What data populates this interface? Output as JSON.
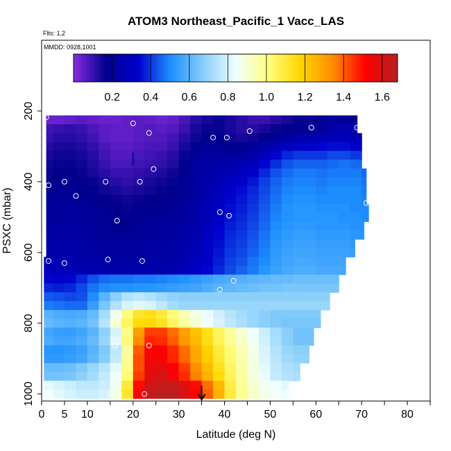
{
  "chart_data": {
    "type": "heatmap",
    "title": "ATOM3 Northeast_Pacific_1 Vacc_LAS",
    "flights_label": "Flts: 1,2",
    "date_label": "MMDD: 0928,1001",
    "xlabel": "Latitude (deg N)",
    "ylabel": "PSXC (mbar)",
    "xlim": [
      0,
      85
    ],
    "ylim": [
      1020,
      0
    ],
    "x_ticks": [
      0,
      5,
      10,
      20,
      30,
      40,
      50,
      60,
      70,
      80
    ],
    "y_ticks": [
      200,
      400,
      600,
      800,
      1000
    ],
    "colorbar": {
      "range": [
        0,
        1.68
      ],
      "ticks": [
        "0.2",
        "0.4",
        "0.6",
        "0.8",
        "1.0",
        "1.2",
        "1.4",
        "1.6"
      ],
      "tick_values": [
        0.2,
        0.4,
        0.6,
        0.8,
        1.0,
        1.2,
        1.4,
        1.6
      ],
      "colors": [
        "#8a2be2",
        "#00008b",
        "#0000cd",
        "#1e90ff",
        "#87cefa",
        "#f0ffff",
        "#ffff80",
        "#ffd700",
        "#ff8c00",
        "#ff0000",
        "#b22222"
      ]
    },
    "pressure_levels": [
      225,
      250,
      275,
      300,
      325,
      350,
      375,
      400,
      425,
      450,
      475,
      500,
      525,
      550,
      575,
      600,
      625,
      650,
      675,
      700,
      725,
      750,
      775,
      800,
      825,
      850,
      875,
      900,
      925,
      950,
      975,
      1000
    ],
    "row_extent_lat": [
      [
        1,
        69
      ],
      [
        1,
        69
      ],
      [
        1,
        70
      ],
      [
        1,
        70
      ],
      [
        1,
        70
      ],
      [
        1,
        70
      ],
      [
        1,
        71
      ],
      [
        1,
        71
      ],
      [
        1,
        71
      ],
      [
        1,
        71
      ],
      [
        1,
        71.5
      ],
      [
        1,
        71.5
      ],
      [
        1,
        70.5
      ],
      [
        1,
        70.5
      ],
      [
        1,
        68.5
      ],
      [
        1,
        68.5
      ],
      [
        0.5,
        66.5
      ],
      [
        0.5,
        66.5
      ],
      [
        0.5,
        65
      ],
      [
        0.5,
        65
      ],
      [
        0.5,
        63
      ],
      [
        0.5,
        63
      ],
      [
        0.5,
        61
      ],
      [
        0.5,
        61
      ],
      [
        0.5,
        59.5
      ],
      [
        0.5,
        59.5
      ],
      [
        0.5,
        58.5
      ],
      [
        0.5,
        58.5
      ],
      [
        0.5,
        56.5
      ],
      [
        0.5,
        56.5
      ],
      [
        0.5,
        54
      ],
      [
        0.5,
        54
      ]
    ],
    "grid_lat": [
      0,
      2.5,
      5,
      7.5,
      10,
      12.5,
      15,
      17.5,
      20,
      22.5,
      25,
      27.5,
      30,
      32.5,
      35,
      37.5,
      40,
      42.5,
      45,
      47.5,
      50,
      52.5,
      55,
      57.5,
      60,
      62.5,
      65,
      67.5,
      70,
      72.5
    ],
    "values": [
      [
        0.04,
        0.04,
        0.05,
        0.06,
        0.05,
        0.04,
        0.04,
        0.05,
        0.06,
        0.05,
        0.04,
        0.05,
        0.08,
        0.12,
        0.14,
        0.16,
        0.14,
        0.12,
        0.1,
        0.1,
        0.12,
        0.14,
        0.16,
        0.16,
        0.18,
        0.22,
        0.2,
        0.18,
        0.18,
        0.18
      ],
      [
        0.09,
        0.1,
        0.11,
        0.1,
        0.08,
        0.06,
        0.05,
        0.05,
        0.06,
        0.07,
        0.06,
        0.07,
        0.1,
        0.14,
        0.16,
        0.16,
        0.14,
        0.12,
        0.12,
        0.14,
        0.16,
        0.17,
        0.18,
        0.19,
        0.2,
        0.24,
        0.26,
        0.26,
        0.24,
        0.24
      ],
      [
        0.1,
        0.12,
        0.12,
        0.11,
        0.09,
        0.06,
        0.05,
        0.05,
        0.06,
        0.07,
        0.07,
        0.09,
        0.12,
        0.15,
        0.17,
        0.17,
        0.15,
        0.14,
        0.15,
        0.17,
        0.2,
        0.22,
        0.24,
        0.26,
        0.27,
        0.28,
        0.28,
        0.26,
        0.24,
        0.24
      ],
      [
        0.12,
        0.14,
        0.14,
        0.13,
        0.11,
        0.08,
        0.06,
        0.06,
        0.07,
        0.08,
        0.08,
        0.1,
        0.14,
        0.18,
        0.2,
        0.19,
        0.18,
        0.18,
        0.2,
        0.24,
        0.27,
        0.3,
        0.32,
        0.33,
        0.34,
        0.35,
        0.35,
        0.33,
        0.3,
        0.3
      ],
      [
        0.14,
        0.15,
        0.15,
        0.14,
        0.12,
        0.09,
        0.07,
        0.07,
        0.08,
        0.09,
        0.1,
        0.12,
        0.16,
        0.2,
        0.22,
        0.22,
        0.22,
        0.22,
        0.25,
        0.3,
        0.34,
        0.38,
        0.4,
        0.4,
        0.4,
        0.42,
        0.42,
        0.4,
        0.38,
        0.38
      ],
      [
        0.15,
        0.16,
        0.16,
        0.15,
        0.13,
        0.1,
        0.08,
        0.08,
        0.09,
        0.1,
        0.11,
        0.13,
        0.17,
        0.21,
        0.23,
        0.24,
        0.25,
        0.26,
        0.29,
        0.34,
        0.39,
        0.43,
        0.45,
        0.45,
        0.45,
        0.46,
        0.47,
        0.46,
        0.44,
        0.44
      ],
      [
        0.16,
        0.17,
        0.17,
        0.16,
        0.14,
        0.12,
        0.1,
        0.1,
        0.11,
        0.12,
        0.13,
        0.15,
        0.18,
        0.22,
        0.24,
        0.26,
        0.28,
        0.3,
        0.33,
        0.38,
        0.43,
        0.46,
        0.48,
        0.48,
        0.47,
        0.48,
        0.48,
        0.48,
        0.46,
        0.46
      ],
      [
        0.17,
        0.18,
        0.18,
        0.17,
        0.16,
        0.14,
        0.12,
        0.11,
        0.12,
        0.14,
        0.15,
        0.16,
        0.19,
        0.22,
        0.25,
        0.28,
        0.31,
        0.33,
        0.36,
        0.41,
        0.45,
        0.48,
        0.49,
        0.49,
        0.48,
        0.49,
        0.49,
        0.49,
        0.47,
        0.47
      ],
      [
        0.18,
        0.19,
        0.19,
        0.18,
        0.17,
        0.15,
        0.14,
        0.13,
        0.14,
        0.15,
        0.16,
        0.17,
        0.19,
        0.22,
        0.26,
        0.29,
        0.33,
        0.35,
        0.38,
        0.42,
        0.46,
        0.49,
        0.5,
        0.5,
        0.49,
        0.5,
        0.5,
        0.5,
        0.48,
        0.48
      ],
      [
        0.19,
        0.2,
        0.2,
        0.19,
        0.18,
        0.17,
        0.16,
        0.15,
        0.16,
        0.17,
        0.17,
        0.18,
        0.2,
        0.23,
        0.27,
        0.3,
        0.34,
        0.36,
        0.39,
        0.43,
        0.47,
        0.5,
        0.51,
        0.51,
        0.5,
        0.5,
        0.5,
        0.5,
        0.49,
        0.49
      ],
      [
        0.2,
        0.21,
        0.21,
        0.2,
        0.19,
        0.18,
        0.17,
        0.16,
        0.17,
        0.18,
        0.18,
        0.19,
        0.21,
        0.24,
        0.27,
        0.31,
        0.35,
        0.37,
        0.4,
        0.44,
        0.48,
        0.51,
        0.52,
        0.52,
        0.51,
        0.51,
        0.51,
        0.5,
        0.5,
        0.5
      ],
      [
        0.2,
        0.21,
        0.22,
        0.21,
        0.2,
        0.19,
        0.18,
        0.17,
        0.18,
        0.19,
        0.19,
        0.2,
        0.22,
        0.24,
        0.28,
        0.32,
        0.36,
        0.38,
        0.41,
        0.45,
        0.49,
        0.51,
        0.52,
        0.52,
        0.52,
        0.52,
        0.51,
        0.51,
        0.5,
        0.5
      ],
      [
        0.21,
        0.22,
        0.22,
        0.21,
        0.2,
        0.19,
        0.18,
        0.18,
        0.19,
        0.2,
        0.2,
        0.21,
        0.23,
        0.25,
        0.29,
        0.33,
        0.37,
        0.39,
        0.42,
        0.46,
        0.5,
        0.52,
        0.53,
        0.53,
        0.52,
        0.52,
        0.52,
        0.51,
        0.51,
        0.51
      ],
      [
        0.22,
        0.23,
        0.23,
        0.22,
        0.21,
        0.2,
        0.19,
        0.19,
        0.2,
        0.21,
        0.21,
        0.22,
        0.24,
        0.26,
        0.3,
        0.34,
        0.38,
        0.4,
        0.43,
        0.47,
        0.51,
        0.53,
        0.54,
        0.54,
        0.53,
        0.53,
        0.53,
        0.52,
        0.52,
        0.52
      ],
      [
        0.23,
        0.24,
        0.24,
        0.23,
        0.22,
        0.21,
        0.21,
        0.2,
        0.21,
        0.22,
        0.22,
        0.23,
        0.25,
        0.27,
        0.31,
        0.35,
        0.39,
        0.41,
        0.44,
        0.48,
        0.52,
        0.54,
        0.55,
        0.55,
        0.54,
        0.54,
        0.54,
        0.53,
        0.53,
        0.53
      ],
      [
        0.24,
        0.25,
        0.25,
        0.24,
        0.23,
        0.22,
        0.22,
        0.21,
        0.22,
        0.23,
        0.23,
        0.24,
        0.26,
        0.28,
        0.32,
        0.36,
        0.4,
        0.42,
        0.45,
        0.49,
        0.53,
        0.55,
        0.56,
        0.56,
        0.55,
        0.55,
        0.55,
        0.54,
        0.54,
        0.54
      ],
      [
        0.28,
        0.27,
        0.26,
        0.25,
        0.25,
        0.24,
        0.24,
        0.23,
        0.24,
        0.24,
        0.24,
        0.25,
        0.27,
        0.3,
        0.33,
        0.37,
        0.41,
        0.43,
        0.47,
        0.5,
        0.54,
        0.56,
        0.57,
        0.57,
        0.56,
        0.56,
        0.56,
        0.55,
        0.55,
        0.55
      ],
      [
        0.3,
        0.29,
        0.28,
        0.27,
        0.26,
        0.25,
        0.25,
        0.24,
        0.25,
        0.25,
        0.25,
        0.26,
        0.28,
        0.31,
        0.34,
        0.38,
        0.42,
        0.45,
        0.48,
        0.52,
        0.55,
        0.57,
        0.58,
        0.58,
        0.57,
        0.57,
        0.57,
        0.56,
        0.56,
        0.56
      ],
      [
        0.34,
        0.33,
        0.34,
        0.38,
        0.43,
        0.46,
        0.47,
        0.47,
        0.48,
        0.48,
        0.49,
        0.5,
        0.51,
        0.53,
        0.55,
        0.57,
        0.58,
        0.59,
        0.6,
        0.61,
        0.62,
        0.62,
        0.63,
        0.63,
        0.63,
        0.63,
        0.63,
        0.62,
        0.62,
        0.62
      ],
      [
        0.38,
        0.37,
        0.38,
        0.42,
        0.47,
        0.5,
        0.51,
        0.51,
        0.52,
        0.52,
        0.53,
        0.54,
        0.55,
        0.56,
        0.58,
        0.6,
        0.61,
        0.62,
        0.63,
        0.64,
        0.64,
        0.65,
        0.65,
        0.65,
        0.65,
        0.65,
        0.65,
        0.64,
        0.64,
        0.64
      ],
      [
        0.44,
        0.43,
        0.42,
        0.43,
        0.5,
        0.6,
        0.68,
        0.74,
        0.76,
        0.74,
        0.71,
        0.69,
        0.68,
        0.68,
        0.68,
        0.68,
        0.68,
        0.68,
        0.68,
        0.68,
        0.68,
        0.68,
        0.68,
        0.68,
        0.68,
        0.68,
        0.68,
        0.68,
        0.68,
        0.68
      ],
      [
        0.48,
        0.47,
        0.46,
        0.46,
        0.54,
        0.65,
        0.74,
        0.8,
        0.82,
        0.8,
        0.76,
        0.72,
        0.7,
        0.7,
        0.7,
        0.7,
        0.7,
        0.7,
        0.7,
        0.7,
        0.7,
        0.7,
        0.7,
        0.7,
        0.7,
        0.7,
        0.7,
        0.7,
        0.7,
        0.7
      ],
      [
        0.6,
        0.58,
        0.57,
        0.58,
        0.62,
        0.72,
        0.86,
        1.02,
        1.12,
        1.14,
        1.1,
        1.02,
        0.94,
        0.88,
        0.83,
        0.79,
        0.75,
        0.72,
        0.7,
        0.68,
        0.66,
        0.66,
        0.66,
        0.66,
        0.66,
        0.66,
        0.66,
        0.66,
        0.66,
        0.66
      ],
      [
        0.62,
        0.6,
        0.59,
        0.6,
        0.64,
        0.75,
        0.9,
        1.05,
        1.16,
        1.17,
        1.13,
        1.05,
        0.97,
        0.9,
        0.84,
        0.8,
        0.76,
        0.73,
        0.7,
        0.68,
        0.66,
        0.65,
        0.65,
        0.65,
        0.65,
        0.65,
        0.65,
        0.65,
        0.65,
        0.65
      ],
      [
        0.56,
        0.54,
        0.54,
        0.56,
        0.6,
        0.68,
        0.8,
        1.0,
        1.3,
        1.44,
        1.44,
        1.38,
        1.3,
        1.22,
        1.14,
        1.05,
        0.97,
        0.9,
        0.84,
        0.78,
        0.72,
        0.68,
        0.64,
        0.64,
        0.64,
        0.64,
        0.64,
        0.64,
        0.64,
        0.64
      ],
      [
        0.58,
        0.56,
        0.56,
        0.58,
        0.62,
        0.7,
        0.82,
        1.02,
        1.34,
        1.47,
        1.46,
        1.4,
        1.32,
        1.24,
        1.15,
        1.06,
        0.98,
        0.91,
        0.85,
        0.79,
        0.73,
        0.68,
        0.64,
        0.64,
        0.64,
        0.64,
        0.64,
        0.64,
        0.64,
        0.64
      ],
      [
        0.52,
        0.52,
        0.53,
        0.55,
        0.6,
        0.66,
        0.76,
        0.96,
        1.4,
        1.52,
        1.52,
        1.46,
        1.38,
        1.28,
        1.19,
        1.1,
        1.02,
        0.94,
        0.87,
        0.8,
        0.74,
        0.7,
        0.68,
        0.68,
        0.68,
        0.68,
        0.68,
        0.68,
        0.68,
        0.68
      ],
      [
        0.53,
        0.53,
        0.54,
        0.56,
        0.61,
        0.67,
        0.77,
        0.98,
        1.42,
        1.54,
        1.53,
        1.47,
        1.39,
        1.29,
        1.2,
        1.11,
        1.03,
        0.95,
        0.88,
        0.81,
        0.75,
        0.71,
        0.69,
        0.69,
        0.69,
        0.69,
        0.69,
        0.69,
        0.69,
        0.69
      ],
      [
        0.62,
        0.62,
        0.63,
        0.66,
        0.7,
        0.75,
        0.82,
        1.0,
        1.42,
        1.56,
        1.58,
        1.52,
        1.44,
        1.34,
        1.24,
        1.14,
        1.05,
        0.96,
        0.88,
        0.82,
        0.76,
        0.73,
        0.72,
        0.72,
        0.72,
        0.72,
        0.72,
        0.72,
        0.72,
        0.72
      ],
      [
        0.64,
        0.64,
        0.65,
        0.68,
        0.72,
        0.77,
        0.84,
        1.02,
        1.44,
        1.58,
        1.6,
        1.54,
        1.46,
        1.36,
        1.26,
        1.16,
        1.06,
        0.97,
        0.89,
        0.83,
        0.77,
        0.74,
        0.73,
        0.73,
        0.73,
        0.73,
        0.73,
        0.73,
        0.73,
        0.73
      ],
      [
        0.82,
        0.8,
        0.78,
        0.76,
        0.76,
        0.78,
        0.86,
        1.1,
        1.5,
        1.62,
        1.64,
        1.64,
        1.58,
        1.5,
        1.38,
        1.24,
        1.08,
        0.98,
        0.9,
        0.86,
        0.84,
        0.82,
        0.8,
        0.8,
        0.8,
        0.8,
        0.8,
        0.8,
        0.8,
        0.8
      ],
      [
        0.84,
        0.82,
        0.8,
        0.78,
        0.78,
        0.8,
        0.88,
        1.12,
        1.52,
        1.64,
        1.66,
        1.66,
        1.6,
        1.52,
        1.4,
        1.26,
        1.1,
        0.99,
        0.91,
        0.87,
        0.85,
        0.83,
        0.81,
        0.81,
        0.81,
        0.81,
        0.81,
        0.81,
        0.81,
        0.81
      ]
    ],
    "samples": [
      [
        1,
        218
      ],
      [
        20,
        235
      ],
      [
        59,
        247
      ],
      [
        69,
        247
      ],
      [
        23.5,
        262
      ],
      [
        45.5,
        257
      ],
      [
        37.5,
        275
      ],
      [
        40.5,
        275
      ],
      [
        24.5,
        364
      ],
      [
        1.5,
        410
      ],
      [
        5,
        400
      ],
      [
        14,
        400
      ],
      [
        21.5,
        400
      ],
      [
        7.5,
        440
      ],
      [
        71,
        460
      ],
      [
        16.5,
        510
      ],
      [
        39,
        486
      ],
      [
        41,
        496
      ],
      [
        1.5,
        624
      ],
      [
        5,
        630
      ],
      [
        14.5,
        620
      ],
      [
        22,
        624
      ],
      [
        42,
        680
      ],
      [
        39,
        705
      ],
      [
        16,
        863
      ],
      [
        23.5,
        863
      ],
      [
        1,
        1000
      ],
      [
        15,
        998
      ],
      [
        22.5,
        1000
      ],
      [
        54,
        998
      ]
    ],
    "arrow_up_lat": 20,
    "arrow_down_lat": 35
  }
}
